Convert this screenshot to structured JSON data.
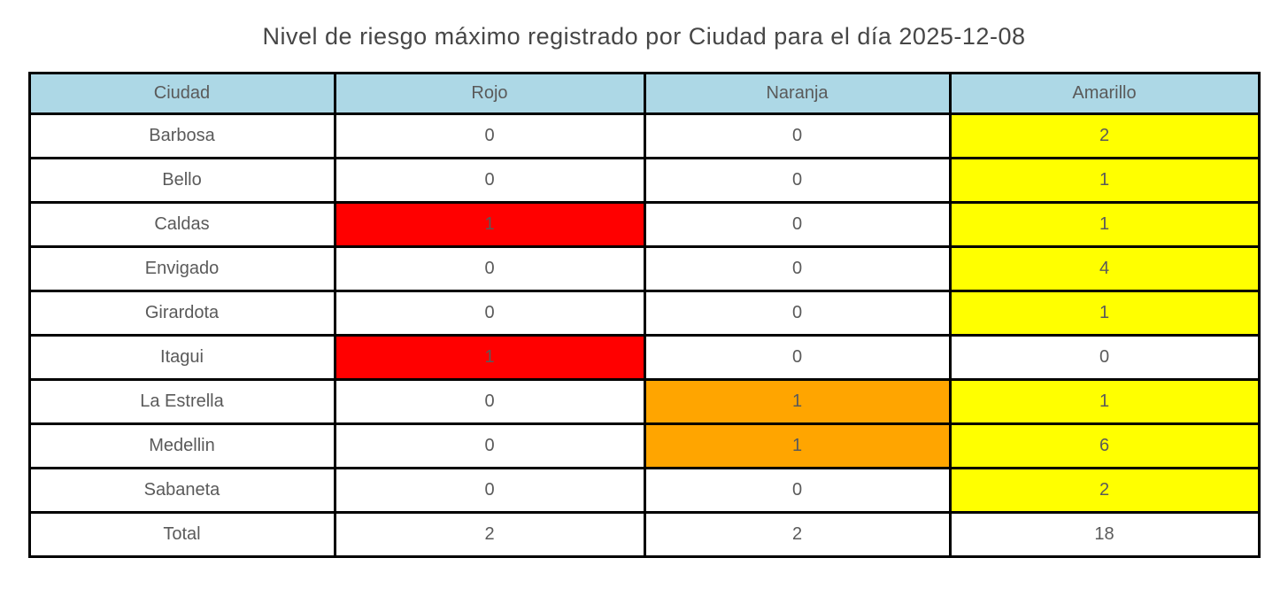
{
  "title": "Nivel de riesgo máximo registrado por Ciudad para el día 2025-12-08",
  "colors": {
    "header_bg": "#ADD8E6",
    "red": "#FF0000",
    "orange": "#FFA500",
    "yellow": "#FFFF00",
    "border": "#000000",
    "text": "#5a5a5a"
  },
  "chart_data": {
    "type": "table",
    "title": "Nivel de riesgo máximo registrado por Ciudad para el día 2025-12-08",
    "columns": [
      "Ciudad",
      "Rojo",
      "Naranja",
      "Amarillo"
    ],
    "rows": [
      {
        "ciudad": "Barbosa",
        "rojo": "0",
        "naranja": "0",
        "amarillo": "2",
        "highlights": {
          "rojo": null,
          "naranja": null,
          "amarillo": "yellow"
        }
      },
      {
        "ciudad": "Bello",
        "rojo": "0",
        "naranja": "0",
        "amarillo": "1",
        "highlights": {
          "rojo": null,
          "naranja": null,
          "amarillo": "yellow"
        }
      },
      {
        "ciudad": "Caldas",
        "rojo": "1",
        "naranja": "0",
        "amarillo": "1",
        "highlights": {
          "rojo": "red",
          "naranja": null,
          "amarillo": "yellow"
        }
      },
      {
        "ciudad": "Envigado",
        "rojo": "0",
        "naranja": "0",
        "amarillo": "4",
        "highlights": {
          "rojo": null,
          "naranja": null,
          "amarillo": "yellow"
        }
      },
      {
        "ciudad": "Girardota",
        "rojo": "0",
        "naranja": "0",
        "amarillo": "1",
        "highlights": {
          "rojo": null,
          "naranja": null,
          "amarillo": "yellow"
        }
      },
      {
        "ciudad": "Itagui",
        "rojo": "1",
        "naranja": "0",
        "amarillo": "0",
        "highlights": {
          "rojo": "red",
          "naranja": null,
          "amarillo": null
        }
      },
      {
        "ciudad": "La Estrella",
        "rojo": "0",
        "naranja": "1",
        "amarillo": "1",
        "highlights": {
          "rojo": null,
          "naranja": "orange",
          "amarillo": "yellow"
        }
      },
      {
        "ciudad": "Medellin",
        "rojo": "0",
        "naranja": "1",
        "amarillo": "6",
        "highlights": {
          "rojo": null,
          "naranja": "orange",
          "amarillo": "yellow"
        }
      },
      {
        "ciudad": "Sabaneta",
        "rojo": "0",
        "naranja": "0",
        "amarillo": "2",
        "highlights": {
          "rojo": null,
          "naranja": null,
          "amarillo": "yellow"
        }
      },
      {
        "ciudad": "Total",
        "rojo": "2",
        "naranja": "2",
        "amarillo": "18",
        "highlights": {
          "rojo": null,
          "naranja": null,
          "amarillo": null
        }
      }
    ]
  }
}
